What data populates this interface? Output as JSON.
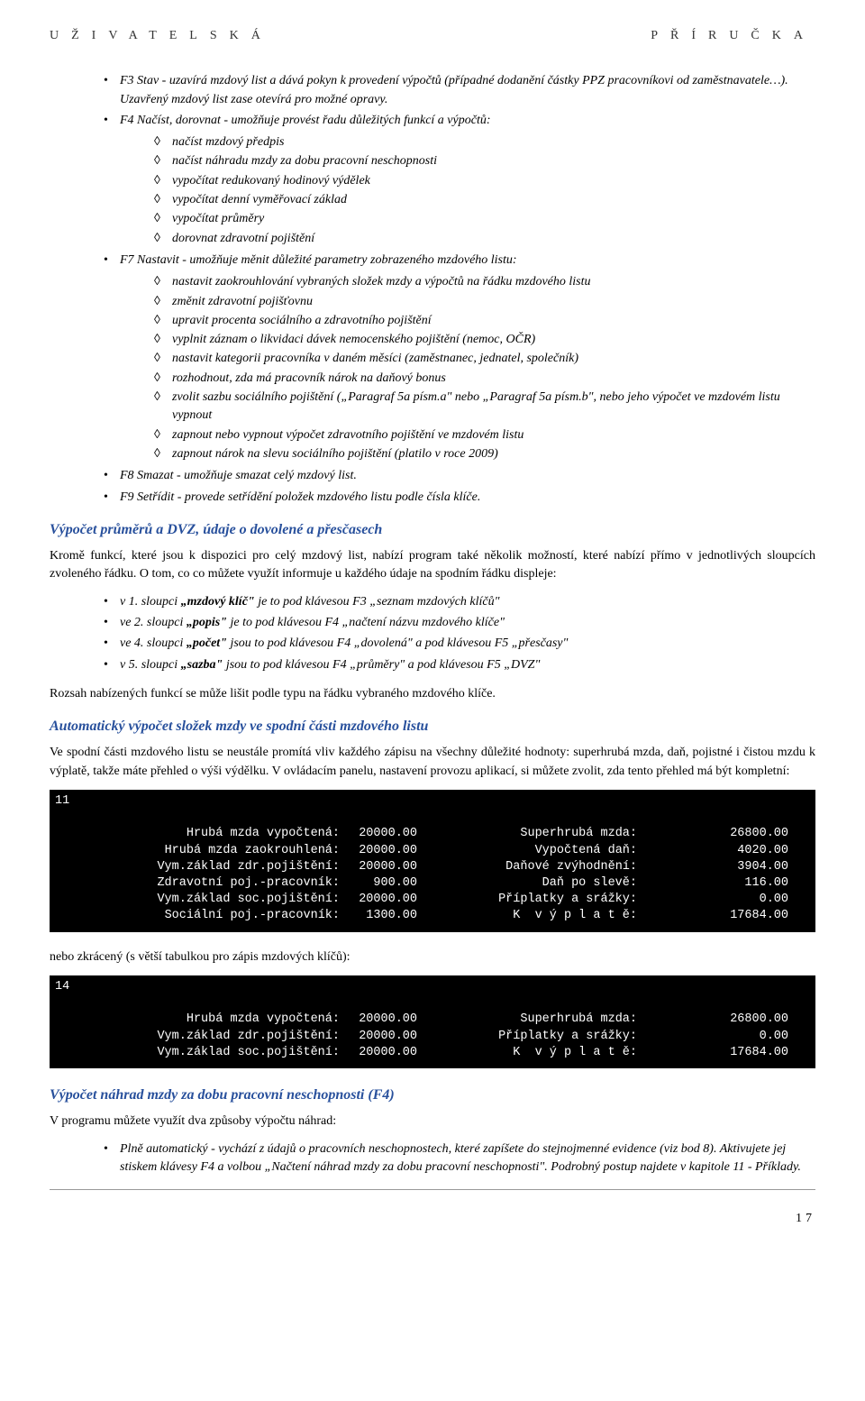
{
  "header_spaced": "UŽIVATELSKÁ PŘÍRUČKA",
  "items": {
    "f3": "F3 Stav - uzavírá mzdový list a dává pokyn k provedení výpočtů (případné dodanění částky PPZ pracovníkovi od zaměstnavatele…). Uzavřený mzdový list zase otevírá pro možné opravy.",
    "f4": "F4 Načíst, dorovnat - umožňuje provést řadu důležitých funkcí a výpočtů:",
    "f4_sub": [
      "načíst mzdový předpis",
      "načíst náhradu mzdy za dobu pracovní neschopnosti",
      "vypočítat redukovaný hodinový výdělek",
      "vypočítat denní vyměřovací základ",
      "vypočítat průměry",
      "dorovnat zdravotní pojištění"
    ],
    "f7": "F7 Nastavit - umožňuje měnit důležité parametry zobrazeného mzdového listu:",
    "f7_sub": [
      "nastavit zaokrouhlování vybraných složek mzdy a výpočtů na řádku mzdového listu",
      "změnit zdravotní pojišťovnu",
      "upravit procenta sociálního a zdravotního pojištění",
      "vyplnit záznam o likvidaci dávek nemocenského pojištění (nemoc, OČR)",
      "nastavit kategorii pracovníka v daném měsíci (zaměstnanec, jednatel, společník)",
      "rozhodnout, zda má pracovník nárok na daňový bonus",
      "zvolit sazbu sociálního pojištění („Paragraf 5a písm.a\" nebo „Paragraf 5a písm.b\", nebo jeho výpočet ve mzdovém listu vypnout",
      "zapnout nebo vypnout výpočet zdravotního pojištění ve mzdovém listu",
      "zapnout nárok na slevu sociálního pojištění (platilo v roce 2009)"
    ],
    "f8": "F8 Smazat - umožňuje smazat celý mzdový list.",
    "f9": "F9 Setřídit - provede setřídění položek mzdového listu podle čísla klíče."
  },
  "h1": "Výpočet průměrů a DVZ, údaje o dovolené a přesčasech",
  "p1": "Kromě funkcí, které jsou k dispozici pro celý mzdový list, nabízí program také několik možností, které nabízí přímo v jednotlivých sloupcích zvoleného řádku. O tom, co co můžete využít informuje u každého údaje na spodním řádku displeje:",
  "col_list": [
    {
      "pre": "v 1. sloupci ",
      "key": "„mzdový klíč\"",
      "post": " je to pod klávesou F3 „seznam mzdových klíčů\""
    },
    {
      "pre": "ve 2. sloupci ",
      "key": "„popis\"",
      "post": " je to pod klávesou F4 „načtení názvu mzdového klíče\""
    },
    {
      "pre": "ve 4. sloupci ",
      "key": "„počet\"",
      "post": " jsou to pod klávesou F4 „dovolená\" a pod klávesou F5 „přesčasy\""
    },
    {
      "pre": "v 5. sloupci ",
      "key": "„sazba\"",
      "post": " jsou to pod klávesou F4 „průměry\" a pod klávesou F5 „DVZ\""
    }
  ],
  "p2": "Rozsah nabízených funkcí se může lišit podle typu na řádku vybraného mzdového klíče.",
  "h2": "Automatický výpočet složek mzdy ve spodní části mzdového listu",
  "p3": "Ve spodní části mzdového listu se neustále promítá vliv každého zápisu na všechny důležité hodnoty: superhrubá mzda, daň, pojistné i čistou mzdu k výplatě, takže máte přehled o výši výdělku. V ovládacím panelu, nastavení provozu aplikací, si můžete zvolit, zda tento přehled má být kompletní:",
  "terminal1": {
    "idx": "11",
    "rows": [
      {
        "l1": "Hrubá mzda vypočtená:",
        "v1": "20000.00",
        "l2": "Superhrubá mzda:",
        "v2": "26800.00"
      },
      {
        "l1": "Hrubá mzda zaokrouhlená:",
        "v1": "20000.00",
        "l2": "Vypočtená daň:",
        "v2": "4020.00"
      },
      {
        "l1": "Vym.základ zdr.pojištění:",
        "v1": "20000.00",
        "l2": "Daňové zvýhodnění:",
        "v2": "3904.00"
      },
      {
        "l1": "Zdravotní poj.-pracovník:",
        "v1": "900.00",
        "l2": "Daň po slevě:",
        "v2": "116.00"
      },
      {
        "l1": "Vym.základ soc.pojištění:",
        "v1": "20000.00",
        "l2": "Příplatky a srážky:",
        "v2": "0.00"
      },
      {
        "l1": "Sociální poj.-pracovník:",
        "v1": "1300.00",
        "l2": "K  v ý p l a t ě:",
        "v2": "17684.00"
      }
    ]
  },
  "p4": "nebo zkrácený (s větší tabulkou pro zápis mzdových klíčů):",
  "terminal2": {
    "idx": "14",
    "rows": [
      {
        "l1": "Hrubá mzda vypočtená:",
        "v1": "20000.00",
        "l2": "Superhrubá mzda:",
        "v2": "26800.00"
      },
      {
        "l1": "Vym.základ zdr.pojištění:",
        "v1": "20000.00",
        "l2": "Příplatky a srážky:",
        "v2": "0.00"
      },
      {
        "l1": "Vym.základ soc.pojištění:",
        "v1": "20000.00",
        "l2": "K  v ý p l a t ě:",
        "v2": "17684.00"
      }
    ]
  },
  "h3": "Výpočet náhrad mzdy za dobu pracovní neschopnosti (F4)",
  "p5": "V programu můžete využít dva způsoby výpočtu náhrad:",
  "method1": "Plně automatický - vychází z údajů o pracovních neschopnostech, které zapíšete do stejnojmenné evidence (viz bod 8). Aktivujete jej stiskem klávesy F4 a volbou „Načtení náhrad mzdy za dobu pracovní neschopnosti\". Podrobný postup najdete v kapitole 11 - Příklady.",
  "page_no": "17"
}
